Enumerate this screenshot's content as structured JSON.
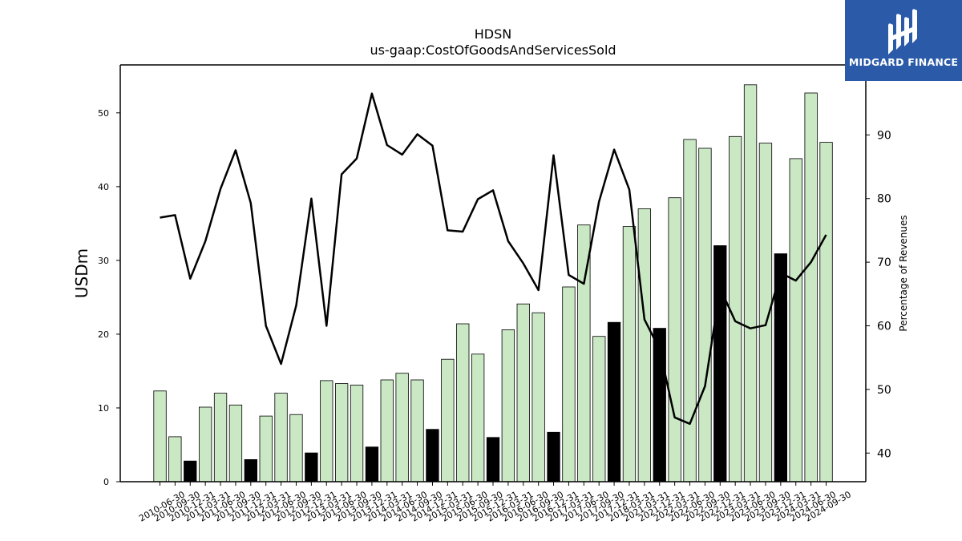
{
  "chart_data": {
    "type": "bar",
    "title": "HDSN",
    "subtitle": "us-gaap:CostOfGoodsAndServicesSold",
    "ylabel": "USDm",
    "y2label": "Percentage of Revenues",
    "ylim": [
      0,
      56.5
    ],
    "y2lim": [
      35.5,
      101
    ],
    "yticks": [
      0,
      10,
      20,
      30,
      40,
      50
    ],
    "y2ticks": [
      40,
      50,
      60,
      70,
      80,
      90
    ],
    "categories": [
      "2010-06-30",
      "2010-09-30",
      "2010-12-31",
      "2011-03-31",
      "2011-06-30",
      "2011-09-30",
      "2011-12-31",
      "2012-03-31",
      "2012-06-30",
      "2012-09-30",
      "2012-12-31",
      "2013-03-31",
      "2013-06-30",
      "2013-09-30",
      "2013-12-31",
      "2014-03-31",
      "2014-06-30",
      "2014-09-30",
      "2014-12-31",
      "2015-03-31",
      "2015-06-30",
      "2015-09-30",
      "2015-12-31",
      "2016-03-31",
      "2016-06-30",
      "2016-09-30",
      "2016-12-31",
      "2017-03-31",
      "2017-06-30",
      "2017-09-30",
      "2017-12-31",
      "2018-03-31",
      "2021-03-31",
      "2021-12-31",
      "2022-03-31",
      "2022-06-30",
      "2022-09-30",
      "2022-12-31",
      "2023-03-31",
      "2023-06-30",
      "2023-09-30",
      "2023-12-31",
      "2024-03-31",
      "2024-06-30",
      "2024-09-30"
    ],
    "series": [
      {
        "kind": "bar",
        "values": [
          12.3,
          6.1,
          2.8,
          10.1,
          12.0,
          10.4,
          3.0,
          8.9,
          12.0,
          9.1,
          3.9,
          13.7,
          13.3,
          13.1,
          4.7,
          13.8,
          14.7,
          13.8,
          7.1,
          16.6,
          21.4,
          17.3,
          6.0,
          20.6,
          24.1,
          22.9,
          6.7,
          26.4,
          34.8,
          19.7,
          21.6,
          34.6,
          37.0,
          20.8,
          38.5,
          46.4,
          45.2,
          32.0,
          46.8,
          53.8,
          45.9,
          30.9,
          43.8,
          52.7,
          46.0
        ],
        "highlight": [
          false,
          false,
          true,
          false,
          false,
          false,
          true,
          false,
          false,
          false,
          true,
          false,
          false,
          false,
          true,
          false,
          false,
          false,
          true,
          false,
          false,
          false,
          true,
          false,
          false,
          false,
          true,
          false,
          false,
          false,
          true,
          false,
          false,
          true,
          false,
          false,
          false,
          true,
          false,
          false,
          false,
          true,
          false,
          false,
          false
        ],
        "colors": {
          "normal": "#c9e8c3",
          "highlight": "#000000"
        }
      },
      {
        "kind": "line",
        "axis": "right",
        "color": "#000000",
        "values": [
          77.0,
          77.4,
          67.4,
          73.3,
          81.5,
          87.6,
          79.3,
          60.0,
          54.0,
          63.2,
          80.0,
          60.0,
          83.8,
          86.3,
          96.5,
          88.4,
          86.9,
          90.1,
          88.3,
          75.0,
          74.8,
          79.9,
          81.3,
          73.3,
          69.8,
          65.6,
          86.8,
          68.0,
          66.6,
          79.5,
          87.7,
          81.4,
          61.0,
          56.3,
          45.6,
          44.6,
          50.5,
          65.9,
          60.7,
          59.6,
          60.1,
          68.3,
          67.1,
          70.0,
          74.3
        ]
      }
    ]
  },
  "logo": {
    "text": "MIDGARD FINANCE",
    "background": "#2a5aa8"
  }
}
